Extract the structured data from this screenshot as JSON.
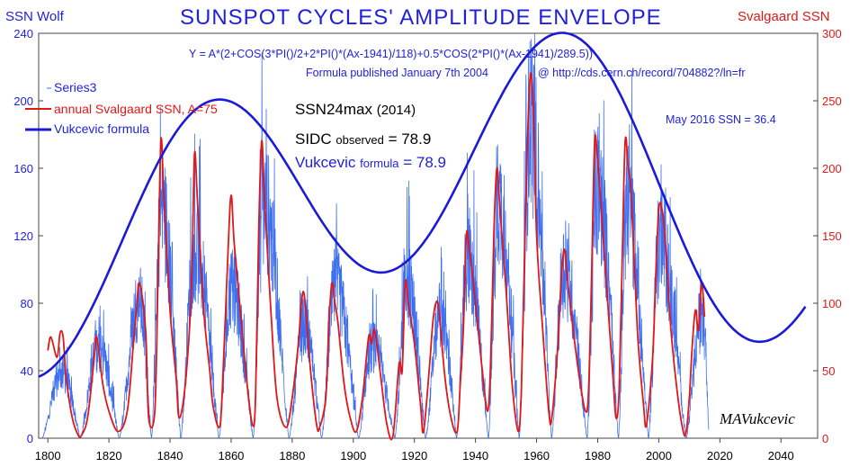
{
  "chart_data": {
    "type": "line",
    "title": "SUNSPOT  CYCLES'  AMPLITUDE  ENVELOPE",
    "ylabel_left": "SSN Wolf",
    "ylabel_right": "Svalgaard SSN",
    "xlim": [
      1797,
      2052
    ],
    "ylim_left": [
      0,
      240
    ],
    "ylim_right": [
      0,
      300
    ],
    "x_ticks": [
      "1800",
      "1820",
      "1840",
      "1860",
      "1880",
      "1900",
      "1920",
      "1940",
      "1960",
      "1980",
      "2000",
      "2020",
      "2040"
    ],
    "y_left_ticks": [
      "0",
      "40",
      "80",
      "120",
      "160",
      "200",
      "240"
    ],
    "y_right_ticks": [
      "0",
      "50",
      "100",
      "150",
      "200",
      "250",
      "300"
    ],
    "grid": false,
    "legend_position": "top-left",
    "colors": {
      "series3": "#3e6ff0",
      "svalgaard": "#e01818",
      "vukcevic": "#1a1ad8"
    },
    "series": [
      {
        "name": "Series3",
        "axis": "left",
        "style": "monthly noisy",
        "minima": [
          1798,
          1810.6,
          1823.3,
          1833.9,
          1843.5,
          1856.0,
          1867.2,
          1878.9,
          1889.6,
          1901.7,
          1913.6,
          1923.6,
          1933.8,
          1944.2,
          1954.3,
          1964.9,
          1976.5,
          1986.8,
          1996.6,
          2008.9
        ],
        "peaks_x": [
          1804.5,
          1816.4,
          1829.9,
          1837.2,
          1848.1,
          1860.1,
          1870.6,
          1883.9,
          1894.1,
          1906.2,
          1917.6,
          1928.4,
          1937.4,
          1947.5,
          1957.9,
          1968.9,
          1979.9,
          1989.6,
          2000.3,
          2014.3
        ],
        "peaks_y": [
          50,
          70,
          105,
          175,
          145,
          115,
          180,
          85,
          115,
          70,
          120,
          95,
          135,
          180,
          240,
          130,
          190,
          180,
          150,
          95
        ]
      },
      {
        "name": "annual Svalgaard SSN, A=75",
        "axis": "right",
        "x": [
          1800,
          1801,
          1803,
          1804,
          1805,
          1806,
          1808,
          1810,
          1811,
          1813,
          1815,
          1816,
          1818,
          1820,
          1823,
          1826,
          1828,
          1829,
          1830,
          1832,
          1833,
          1835,
          1836,
          1837,
          1838,
          1840,
          1842,
          1843,
          1845,
          1847,
          1848,
          1849,
          1851,
          1853,
          1854,
          1856,
          1857,
          1859,
          1860,
          1861,
          1863,
          1865,
          1867,
          1868,
          1869,
          1870,
          1871,
          1873,
          1875,
          1878,
          1880,
          1882,
          1883,
          1884,
          1886,
          1888,
          1889,
          1891,
          1892,
          1893,
          1894,
          1895,
          1897,
          1899,
          1901,
          1903,
          1905,
          1906,
          1907,
          1909,
          1911,
          1913,
          1915,
          1916,
          1917,
          1918,
          1920,
          1922,
          1923,
          1925,
          1926,
          1927,
          1928,
          1930,
          1932,
          1934,
          1935,
          1936,
          1937,
          1938,
          1940,
          1942,
          1944,
          1945,
          1946,
          1947,
          1948,
          1950,
          1952,
          1954,
          1955,
          1956,
          1957,
          1958,
          1959,
          1960,
          1962,
          1964,
          1965,
          1967,
          1968,
          1969,
          1970,
          1972,
          1974,
          1976,
          1977,
          1978,
          1979,
          1980,
          1981,
          1983,
          1985,
          1986,
          1987,
          1988,
          1989,
          1990,
          1991,
          1993,
          1995,
          1996,
          1998,
          1999,
          2000,
          2001,
          2002,
          2004,
          2006,
          2008,
          2009,
          2010,
          2011,
          2012,
          2013,
          2014,
          2015
        ],
        "y": [
          65,
          75,
          60,
          78,
          75,
          45,
          15,
          2,
          2,
          15,
          55,
          75,
          40,
          20,
          5,
          20,
          70,
          95,
          115,
          80,
          15,
          20,
          110,
          220,
          180,
          95,
          45,
          15,
          40,
          110,
          210,
          175,
          95,
          50,
          25,
          8,
          30,
          140,
          180,
          145,
          95,
          45,
          10,
          30,
          150,
          220,
          175,
          95,
          30,
          8,
          30,
          70,
          100,
          105,
          50,
          10,
          8,
          30,
          85,
          115,
          100,
          85,
          40,
          15,
          5,
          30,
          75,
          70,
          80,
          45,
          10,
          2,
          55,
          50,
          115,
          100,
          70,
          25,
          5,
          55,
          85,
          100,
          95,
          45,
          15,
          5,
          40,
          80,
          150,
          140,
          100,
          55,
          20,
          60,
          150,
          200,
          170,
          110,
          40,
          5,
          35,
          130,
          220,
          270,
          240,
          150,
          80,
          20,
          15,
          70,
          115,
          140,
          120,
          80,
          45,
          20,
          35,
          120,
          220,
          205,
          175,
          110,
          45,
          15,
          35,
          130,
          220,
          200,
          180,
          80,
          25,
          10,
          60,
          120,
          170,
          170,
          150,
          80,
          35,
          5,
          5,
          30,
          70,
          95,
          80,
          115,
          90
        ]
      },
      {
        "name": "Vukcevic formula",
        "axis": "left",
        "x_range": [
          1797,
          2048
        ],
        "formula": "Y = A*(2+COS(3*PI()/2+2*PI()*(Ax-1941)/118)+0.5*COS(2*PI()*(Ax-1941)/289.5))",
        "A": 70.5
      }
    ]
  },
  "labels": {
    "title": "SUNSPOT  CYCLES'  AMPLITUDE  ENVELOPE",
    "left_axis": "SSN Wolf",
    "right_axis": "Svalgaard SSN",
    "formula": "Y = A*(2+COS(3*PI()/2+2*PI()*(Ax-1941)/118)+0.5*COS(2*PI()*(Ax-1941)/289.5))",
    "published": "Formula published January 7th 2004",
    "url": "@  http://cds.cern.ch/record/704882?/ln=fr",
    "may": "May 2016 SSN = 36.4",
    "ssn24max": "SSN24max",
    "ssn24year": "(2014)",
    "sidc": "SIDC",
    "sidc_sub": "observed",
    "sidc_val": "= 78.9",
    "vuk": "Vukcevic",
    "vuk_sub": "formula",
    "vuk_val": "= 78.9",
    "signature": "MAVukcevic",
    "legend": [
      "Series3",
      "annual Svalgaard SSN, A=75",
      "Vukcevic formula"
    ]
  }
}
